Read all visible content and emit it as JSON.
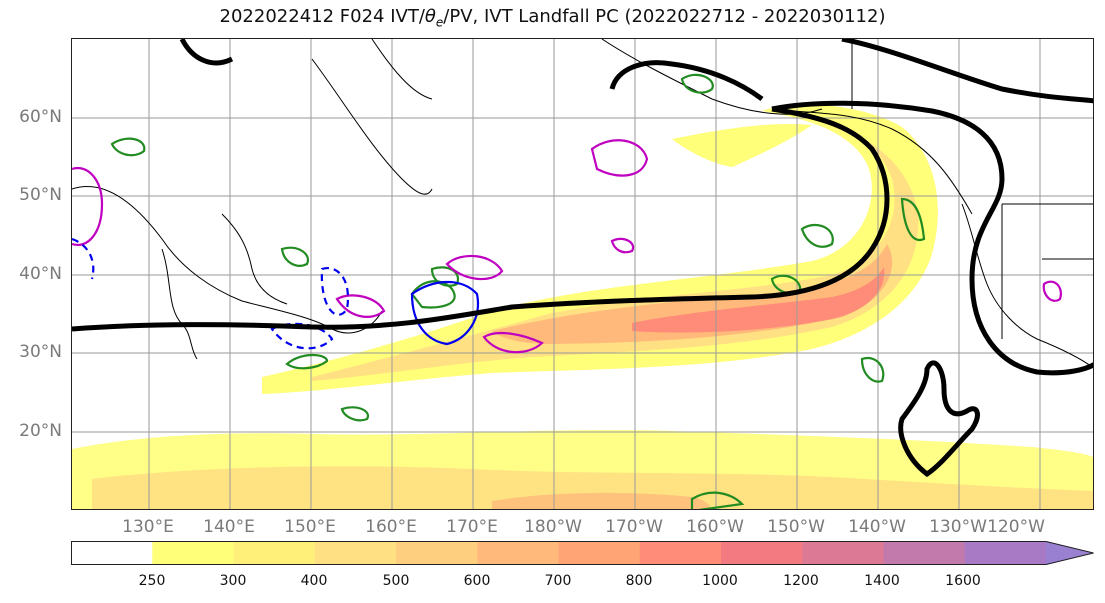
{
  "title": {
    "prefix": "2022022412 F024 IVT/",
    "theta_symbol": "θ",
    "theta_sub": "e",
    "suffix": "/PV, IVT Landfall PC (2022022712 - 2022030112)"
  },
  "map": {
    "lat_labels": [
      "60°N",
      "50°N",
      "40°N",
      "30°N",
      "20°N"
    ],
    "lon_labels": [
      "130°E",
      "140°E",
      "150°E",
      "160°E",
      "170°E",
      "180°W",
      "170°W",
      "160°W",
      "150°W",
      "140°W",
      "130°W",
      "120°W"
    ],
    "gridlines": true,
    "field": "IVT shaded (kg m-1 s-1)",
    "contour_colors": {
      "pc": "#000000",
      "theta_e": "#228b22",
      "pv_pos": "#c000c0",
      "pv_neg": "#0000ee"
    }
  },
  "colorbar": {
    "tick_labels": [
      "250",
      "300",
      "400",
      "500",
      "600",
      "700",
      "800",
      "1000",
      "1200",
      "1400",
      "1600"
    ],
    "colors": [
      "#ffffff",
      "#ffff7a",
      "#fff07a",
      "#ffe083",
      "#ffcf80",
      "#ffb97a",
      "#ffa475",
      "#ff8c78",
      "#f27a80",
      "#dc7a96",
      "#c27aad",
      "#a87ac5",
      "#9a80d0"
    ],
    "extend": "max"
  }
}
